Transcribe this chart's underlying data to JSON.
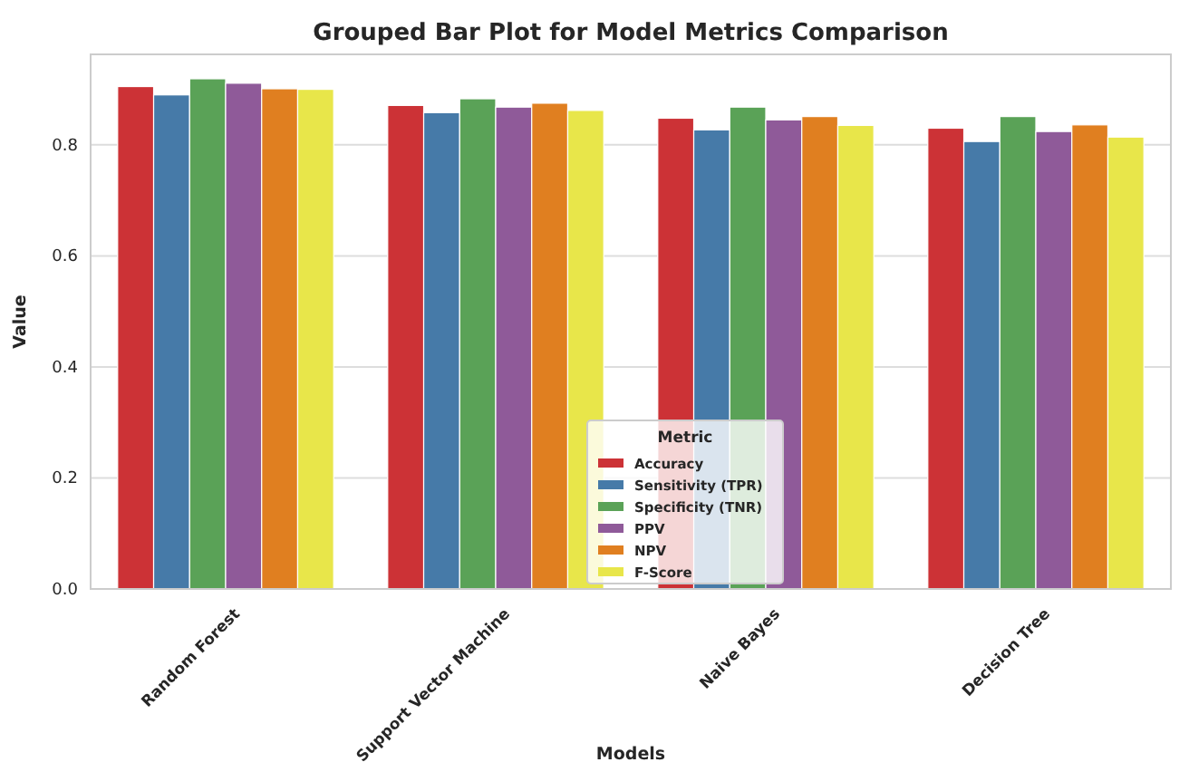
{
  "chart_data": {
    "type": "bar",
    "title": "Grouped Bar Plot for Model Metrics Comparison",
    "xlabel": "Models",
    "ylabel": "Value",
    "legend_title": "Metric",
    "categories": [
      "Random Forest",
      "Support Vector Machine",
      "Naive Bayes",
      "Decision Tree"
    ],
    "series": [
      {
        "name": "Accuracy",
        "color": "#cc3236",
        "values": [
          0.905,
          0.871,
          0.848,
          0.83
        ]
      },
      {
        "name": "Sensitivity (TPR)",
        "color": "#467aa8",
        "values": [
          0.89,
          0.858,
          0.827,
          0.806
        ]
      },
      {
        "name": "Specificity (TNR)",
        "color": "#5aa257",
        "values": [
          0.919,
          0.883,
          0.868,
          0.851
        ]
      },
      {
        "name": "PPV",
        "color": "#8f5a99",
        "values": [
          0.911,
          0.868,
          0.845,
          0.824
        ]
      },
      {
        "name": "NPV",
        "color": "#e07f20",
        "values": [
          0.901,
          0.875,
          0.851,
          0.836
        ]
      },
      {
        "name": "F-Score",
        "color": "#e8e64a",
        "values": [
          0.9,
          0.862,
          0.835,
          0.814
        ]
      }
    ],
    "ylim": [
      0,
      0.963
    ],
    "yticks": [
      {
        "value": 0,
        "label": "0.0"
      },
      {
        "value": 0.2,
        "label": "0.2"
      },
      {
        "value": 0.4,
        "label": "0.4"
      },
      {
        "value": 0.6,
        "label": "0.6"
      },
      {
        "value": 0.8,
        "label": "0.8"
      }
    ],
    "grid": "y",
    "legend": "bottom"
  }
}
